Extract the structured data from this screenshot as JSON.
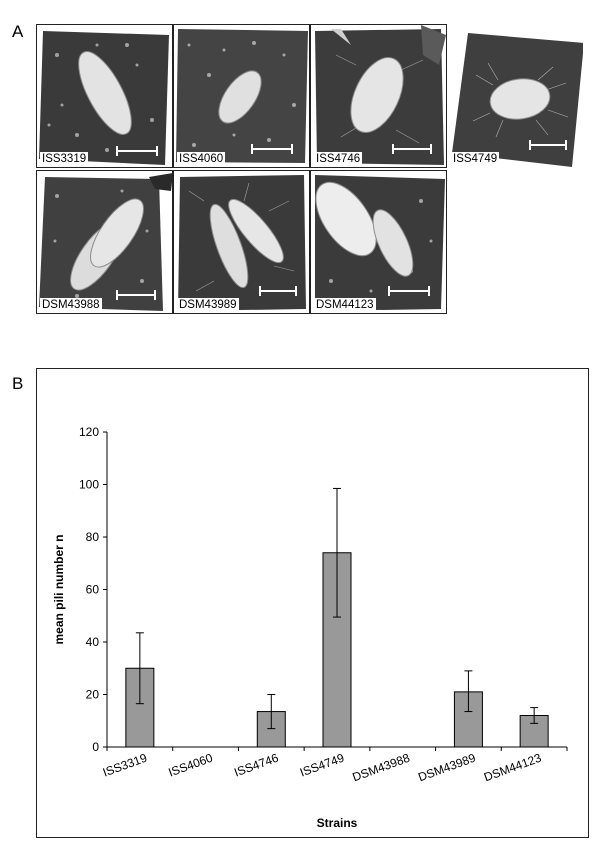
{
  "panel_a": {
    "letter": "A",
    "images": [
      {
        "label": "ISS3319"
      },
      {
        "label": "ISS4060"
      },
      {
        "label": "ISS4746"
      },
      {
        "label": "ISS4749"
      },
      {
        "label": "DSM43988"
      },
      {
        "label": "DSM43989"
      },
      {
        "label": "DSM44123"
      }
    ]
  },
  "panel_b": {
    "letter": "B"
  },
  "chart_data": {
    "type": "bar",
    "title": "",
    "xlabel": "Strains",
    "ylabel": "mean pili number n",
    "categories": [
      "ISS3319",
      "ISS4060",
      "ISS4746",
      "ISS4749",
      "DSM43988",
      "DSM43989",
      "DSM44123"
    ],
    "values": [
      30,
      0,
      13.5,
      74,
      0,
      21,
      12
    ],
    "error_low": [
      16.5,
      0,
      7,
      49.5,
      0,
      13.5,
      9
    ],
    "error_high": [
      43.5,
      0,
      20,
      98.5,
      0,
      29,
      15
    ],
    "ylim": [
      0,
      120
    ],
    "yticks": [
      "0",
      "20",
      "40",
      "60",
      "80",
      "100",
      "120"
    ],
    "bar_color": "#999999",
    "grid": false
  }
}
